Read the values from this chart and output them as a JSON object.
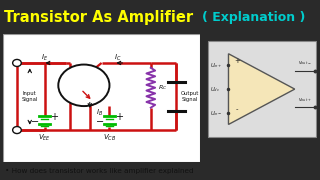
{
  "title1": "Transistor As Amplifier",
  "title2": "( Explanation )",
  "title1_color": "#FFFF00",
  "title2_color": "#00CCCC",
  "title_bg": "#111111",
  "main_bg": "#2a2a2a",
  "circuit_bg": "#ffffff",
  "red_wire": "#cc1111",
  "green_battery": "#00bb00",
  "black_label": "#111111",
  "bottom_text": "• How does transistor works like amplifier explained",
  "bottom_bg": "#eeeeee",
  "bottom_text_color": "#111111",
  "opamp_bg": "#f5e6b8",
  "opamp_border": "#555555",
  "resistor_color": "#8833aa",
  "cap_color": "#111111"
}
